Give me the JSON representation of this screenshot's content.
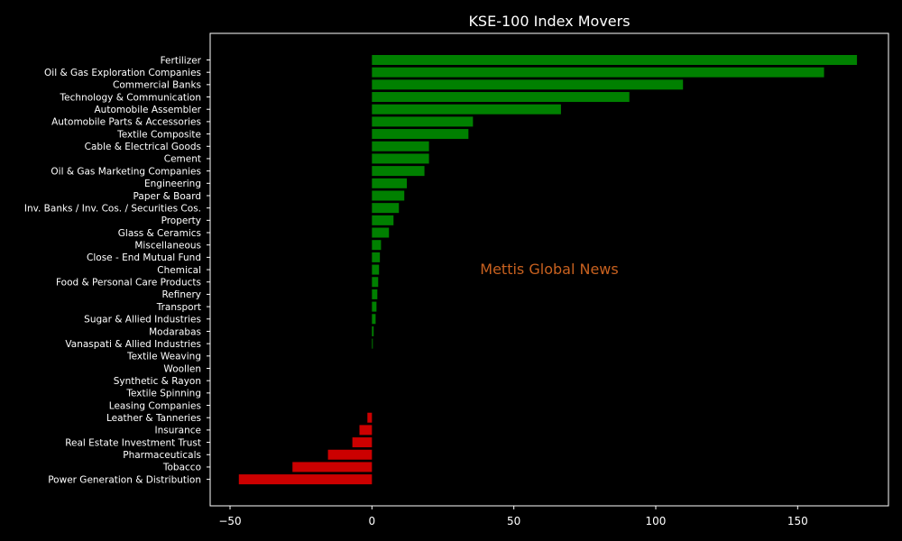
{
  "chart_data": {
    "type": "bar",
    "orientation": "horizontal",
    "title": "KSE-100 Index Movers",
    "watermark": "Mettis Global News",
    "xlabel": "",
    "ylabel": "",
    "xlim": [
      -57,
      182
    ],
    "xticks": [
      -50,
      0,
      50,
      100,
      150
    ],
    "grid": false,
    "categories": [
      "Fertilizer",
      "Oil & Gas Exploration Companies",
      "Commercial Banks",
      "Technology & Communication",
      "Automobile Assembler",
      "Automobile Parts & Accessories",
      "Textile Composite",
      "Cable & Electrical Goods",
      "Cement",
      "Oil & Gas Marketing Companies",
      "Engineering",
      "Paper & Board",
      "Inv. Banks / Inv. Cos. / Securities Cos.",
      "Property",
      "Glass & Ceramics",
      "Miscellaneous",
      "Close - End Mutual Fund",
      "Chemical",
      "Food & Personal Care Products",
      "Refinery",
      "Transport",
      "Sugar & Allied Industries",
      "Modarabas",
      "Vanaspati & Allied Industries",
      "Textile Weaving",
      "Woollen",
      "Synthetic & Rayon",
      "Textile Spinning",
      "Leasing Companies",
      "Leather & Tanneries",
      "Insurance",
      "Real Estate Investment Trust",
      "Pharmaceuticals",
      "Tobacco",
      "Power Generation & Distribution"
    ],
    "values": [
      170.9,
      159.3,
      109.6,
      90.7,
      66.6,
      35.6,
      34.0,
      20.1,
      20.1,
      18.5,
      12.3,
      11.4,
      9.5,
      7.6,
      6.0,
      3.2,
      2.8,
      2.5,
      2.2,
      1.9,
      1.6,
      1.3,
      0.6,
      0.3,
      0,
      0,
      0,
      0,
      0,
      -1.6,
      -4.4,
      -6.9,
      -15.5,
      -28.0,
      -46.9
    ],
    "colors": {
      "positive": "#008000",
      "negative": "#cc0000",
      "background": "#000000",
      "text": "#ffffff",
      "watermark": "#c8611f"
    }
  }
}
